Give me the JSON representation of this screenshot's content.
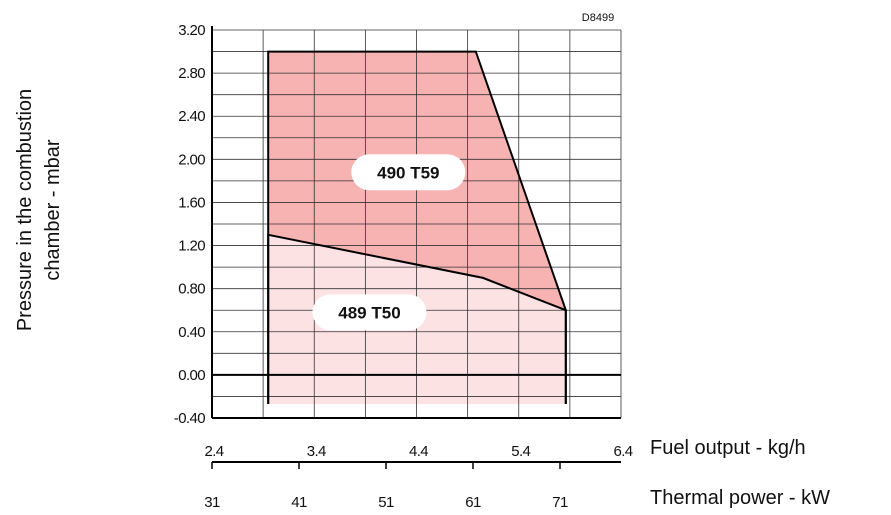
{
  "chart_data": {
    "type": "area",
    "code": "D8499",
    "ylabel_line1": "Pressure in the combustion",
    "ylabel_line2": "chamber - mbar",
    "xlabel_primary": "Fuel output - kg/h",
    "xlabel_secondary": "Thermal power - kW",
    "ylim": [
      -0.4,
      3.2
    ],
    "xlim": [
      2.4,
      6.4
    ],
    "y_ticks": [
      "3.20",
      "2.80",
      "2.40",
      "2.00",
      "1.60",
      "1.20",
      "0.80",
      "0.40",
      "0.00",
      "-0.40"
    ],
    "x_ticks_primary": [
      "2.4",
      "3.4",
      "4.4",
      "5.4",
      "6.4"
    ],
    "x_ticks_secondary": [
      "31",
      "41",
      "51",
      "61",
      "71"
    ],
    "grid": true,
    "series": [
      {
        "name": "490 T59",
        "color": "#f7b2b2",
        "points": [
          {
            "x": 2.95,
            "y": -0.27
          },
          {
            "x": 2.95,
            "y": 3.0
          },
          {
            "x": 4.98,
            "y": 3.0
          },
          {
            "x": 5.86,
            "y": 0.6
          },
          {
            "x": 5.86,
            "y": -0.27
          }
        ]
      },
      {
        "name": "489 T50",
        "color": "#fde2e4",
        "points": [
          {
            "x": 2.95,
            "y": -0.27
          },
          {
            "x": 2.95,
            "y": 1.3
          },
          {
            "x": 5.05,
            "y": 0.9
          },
          {
            "x": 5.86,
            "y": 0.6
          },
          {
            "x": 5.86,
            "y": -0.27
          }
        ]
      }
    ],
    "labels": [
      {
        "text": "490 T59",
        "x": 4.32,
        "y": 1.88
      },
      {
        "text": "489 T50",
        "x": 3.94,
        "y": 0.58
      }
    ]
  }
}
